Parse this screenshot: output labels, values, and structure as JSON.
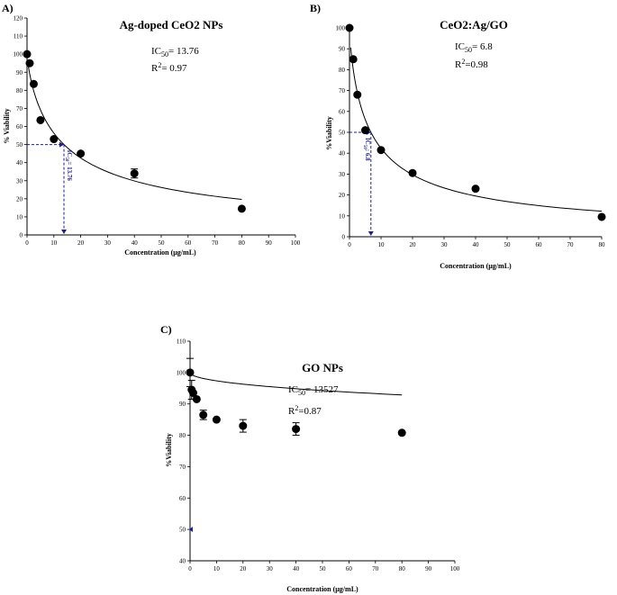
{
  "chart_data": [
    {
      "panel": "A)",
      "type": "scatter",
      "title": "Ag-doped CeO2 NPs",
      "ic50_text": "13.76",
      "r2_text": "0.97",
      "ic50_marker_label": "13.76",
      "ic50_value": 13.76,
      "ic50_viability": 50,
      "xlabel": "Concentration (μg/mL)",
      "ylabel": "% Viability",
      "xlim": [
        0,
        100
      ],
      "ylim": [
        0,
        120
      ],
      "xticks": [
        0,
        10,
        20,
        30,
        40,
        50,
        60,
        70,
        80,
        90,
        100
      ],
      "yticks": [
        0,
        10,
        20,
        30,
        40,
        50,
        60,
        70,
        80,
        90,
        100,
        110,
        120
      ],
      "x": [
        0,
        1,
        2.5,
        5,
        10,
        20,
        40,
        80
      ],
      "y": [
        100,
        95,
        83.5,
        63.5,
        53,
        45,
        34,
        14.5
      ],
      "err": [
        0,
        0,
        0,
        0,
        0,
        0,
        2.5,
        0
      ],
      "fit": {
        "top": 100,
        "ic50": 13.76,
        "hill": 0.8,
        "xmin": 0.4,
        "xmax": 80
      }
    },
    {
      "panel": "B)",
      "type": "scatter",
      "title": "CeO2:Ag/GO",
      "ic50_text": "6.8",
      "r2_text": "0.98",
      "ic50_marker_label": "6.8",
      "ic50_value": 6.8,
      "ic50_viability": 50,
      "xlabel": "Concentration (μg/mL)",
      "ylabel": "%Viability",
      "xlim": [
        0,
        80
      ],
      "ylim": [
        0,
        100
      ],
      "xticks": [
        0,
        10,
        20,
        30,
        40,
        50,
        60,
        70,
        80
      ],
      "yticks": [
        0,
        10,
        20,
        30,
        40,
        50,
        60,
        70,
        80,
        90,
        100
      ],
      "x": [
        0,
        1.2,
        2.5,
        5,
        10,
        20,
        40,
        80
      ],
      "y": [
        100,
        85,
        68,
        51,
        41.5,
        30.5,
        23,
        9.5
      ],
      "err": [
        0,
        0,
        0,
        0,
        0,
        0,
        0,
        0
      ],
      "fit": {
        "top": 100,
        "ic50": 6.8,
        "hill": 0.8,
        "xmin": 0.4,
        "xmax": 80
      }
    },
    {
      "panel": "C)",
      "type": "scatter",
      "title": "GO NPs",
      "ic50_text": "13527",
      "r2_text": "0.87",
      "ic50_marker_label": "",
      "ic50_value": 0,
      "ic50_viability": 50,
      "xlabel": "Concentration (μg/mL)",
      "ylabel": "%Viability",
      "xlim": [
        0,
        100
      ],
      "ylim": [
        40,
        110
      ],
      "xticks": [
        0,
        10,
        20,
        30,
        40,
        50,
        60,
        70,
        80,
        90,
        100
      ],
      "yticks": [
        40,
        50,
        60,
        70,
        80,
        90,
        100,
        110
      ],
      "x": [
        0,
        0.6,
        1.2,
        2.5,
        5,
        10,
        20,
        40,
        80
      ],
      "y": [
        100,
        94.5,
        93.5,
        91.5,
        86.5,
        85,
        83,
        82,
        80.8
      ],
      "err": [
        4.5,
        3,
        0,
        0,
        1.5,
        0,
        2,
        2,
        0
      ],
      "fit": {
        "top": 100,
        "ic50": 13527,
        "hill": 0.5,
        "xmin": 0.3,
        "xmax": 80
      }
    }
  ],
  "labels": {
    "ic50_prefix": "IC",
    "ic50_sub": "50",
    "ic50_eq": "= ",
    "r2_prefix": "R",
    "r2_sup": "2",
    "r2_eq_a": "= ",
    "r2_eq_b": "=",
    "marker_a": "IC",
    "marker_b": "IC"
  }
}
